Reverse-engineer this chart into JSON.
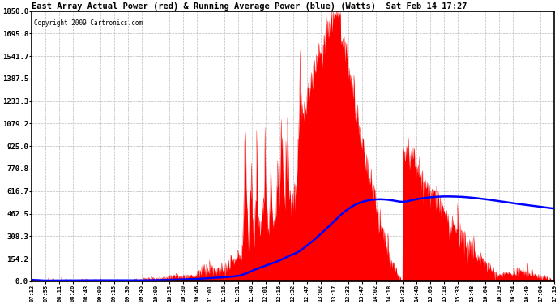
{
  "title": "East Array Actual Power (red) & Running Average Power (blue) (Watts)  Sat Feb 14 17:27",
  "copyright": "Copyright 2009 Cartronics.com",
  "ymax": 1850.0,
  "yticks": [
    0.0,
    154.2,
    308.3,
    462.5,
    616.7,
    770.8,
    925.0,
    1079.2,
    1233.3,
    1387.5,
    1541.7,
    1695.8,
    1850.0
  ],
  "xtick_labels": [
    "07:12",
    "07:55",
    "08:11",
    "08:26",
    "08:43",
    "09:00",
    "09:15",
    "09:30",
    "09:45",
    "10:00",
    "10:15",
    "10:30",
    "10:46",
    "11:01",
    "11:16",
    "11:31",
    "11:46",
    "12:01",
    "12:16",
    "12:32",
    "12:47",
    "13:02",
    "13:17",
    "13:32",
    "13:47",
    "14:02",
    "14:18",
    "14:33",
    "14:48",
    "15:03",
    "15:18",
    "15:33",
    "15:48",
    "16:04",
    "16:19",
    "16:34",
    "16:49",
    "17:04",
    "17:19"
  ],
  "background_color": "#ffffff",
  "bar_color": "#ff0000",
  "line_color": "#0000ff",
  "grid_color": "#aaaaaa"
}
